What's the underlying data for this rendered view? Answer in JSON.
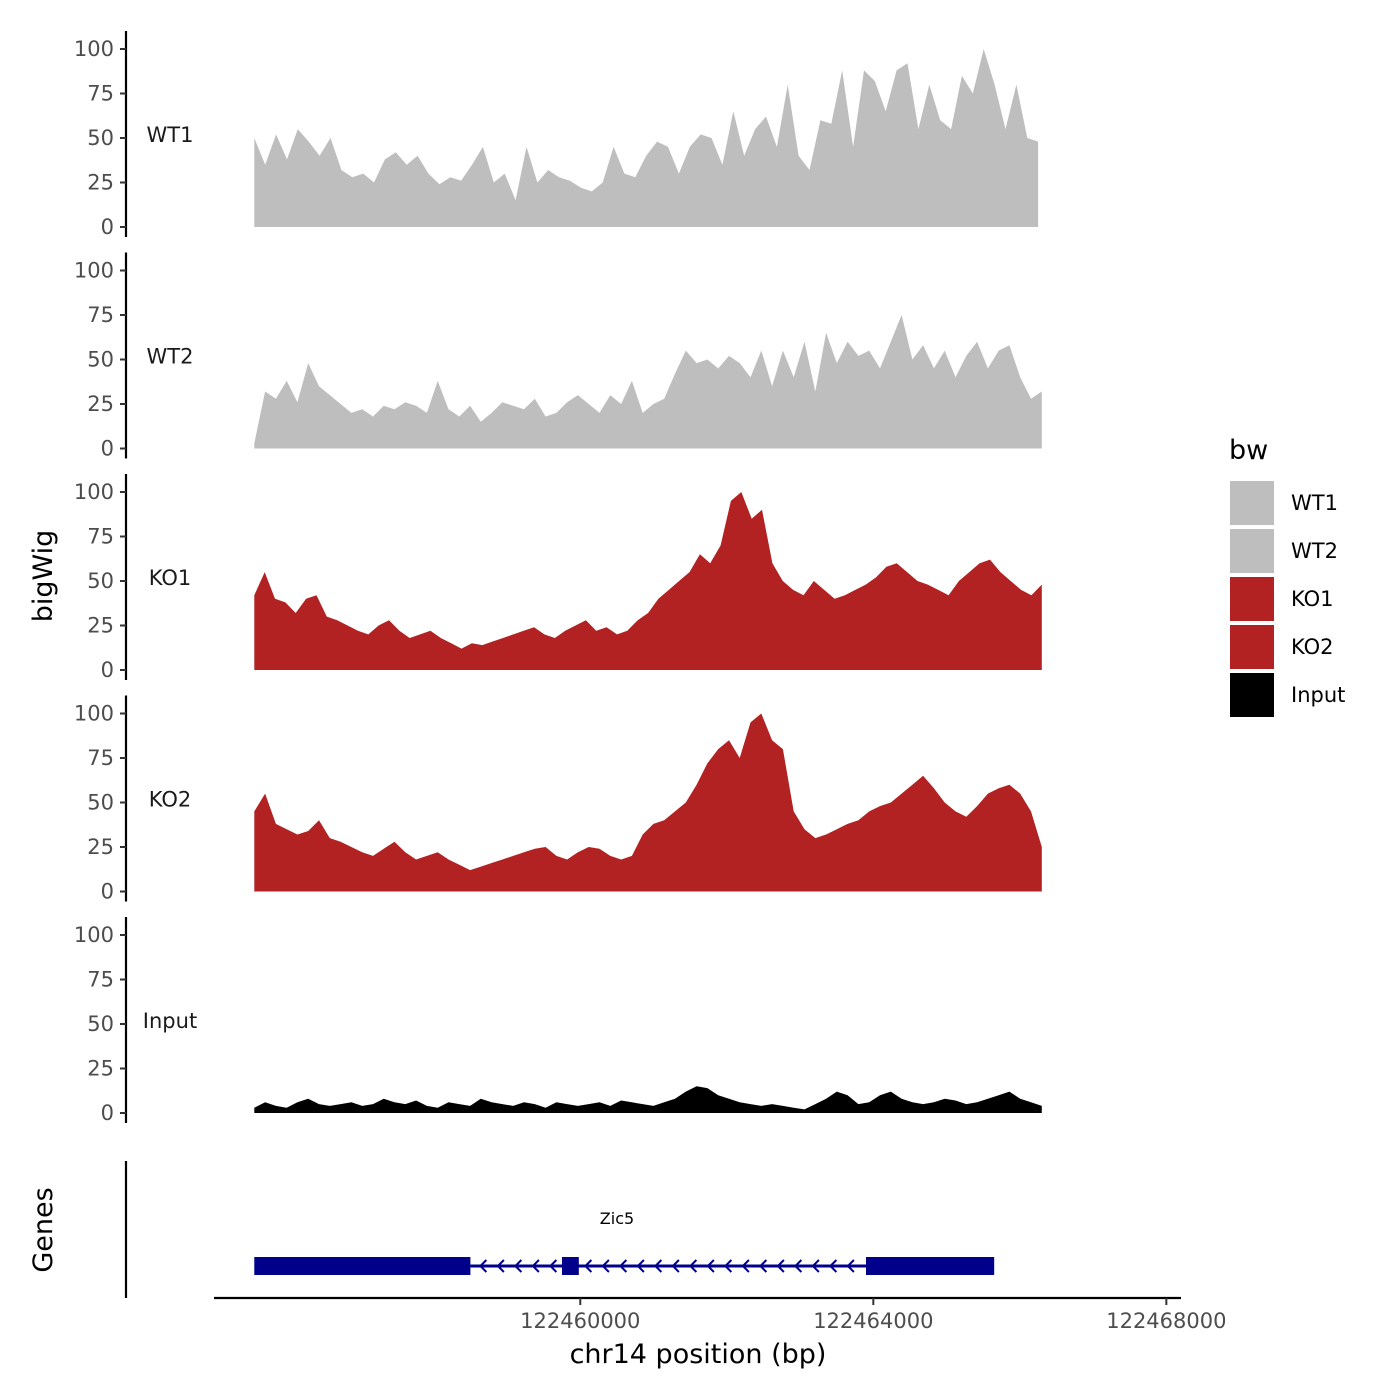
{
  "chart_data": {
    "type": "area",
    "x_axis_title": "chr14 position (bp)",
    "y_axis_title": "bigWig",
    "genes_axis_title": "Genes",
    "x_ticks": [
      122460000,
      122464000,
      122468000
    ],
    "x_tick_labels": [
      "122460000",
      "122464000",
      "122468000"
    ],
    "xlim": [
      122455000,
      122468200
    ],
    "y_ticks": [
      0,
      25,
      50,
      75,
      100
    ],
    "y_tick_labels": [
      "0",
      "25",
      "50",
      "75",
      "100"
    ],
    "ylim": [
      0,
      108
    ],
    "legend": {
      "title": "bw",
      "entries": [
        {
          "label": "WT1",
          "color": "#bebebe"
        },
        {
          "label": "WT2",
          "color": "#bebebe"
        },
        {
          "label": "KO1",
          "color": "#b22222"
        },
        {
          "label": "KO2",
          "color": "#b22222"
        },
        {
          "label": "Input",
          "color": "#000000"
        }
      ]
    },
    "tracks": [
      {
        "name": "WT1",
        "color": "#bebebe",
        "x_start": 122455550,
        "x_end": 122466250,
        "values": [
          50,
          35,
          52,
          38,
          55,
          48,
          40,
          50,
          32,
          28,
          30,
          25,
          38,
          42,
          35,
          40,
          30,
          24,
          28,
          26,
          35,
          45,
          25,
          30,
          15,
          45,
          25,
          32,
          28,
          26,
          22,
          20,
          25,
          45,
          30,
          28,
          40,
          48,
          45,
          30,
          45,
          52,
          50,
          35,
          65,
          40,
          55,
          62,
          45,
          80,
          40,
          32,
          60,
          58,
          88,
          45,
          88,
          82,
          65,
          88,
          92,
          55,
          80,
          60,
          55,
          85,
          75,
          100,
          80,
          55,
          80,
          50,
          48
        ]
      },
      {
        "name": "WT2",
        "color": "#bebebe",
        "x_start": 122455550,
        "x_end": 122466300,
        "values": [
          3,
          32,
          28,
          38,
          26,
          48,
          35,
          30,
          25,
          20,
          22,
          18,
          24,
          22,
          26,
          24,
          20,
          38,
          22,
          18,
          24,
          15,
          20,
          26,
          24,
          22,
          28,
          18,
          20,
          26,
          30,
          25,
          20,
          30,
          25,
          38,
          20,
          25,
          28,
          42,
          55,
          48,
          50,
          45,
          52,
          48,
          40,
          55,
          35,
          55,
          40,
          60,
          32,
          65,
          48,
          60,
          52,
          55,
          45,
          60,
          75,
          50,
          58,
          45,
          55,
          40,
          52,
          60,
          45,
          55,
          58,
          40,
          28,
          32
        ]
      },
      {
        "name": "KO1",
        "color": "#b22222",
        "x_start": 122455550,
        "x_end": 122466300,
        "values": [
          42,
          55,
          40,
          38,
          32,
          40,
          42,
          30,
          28,
          25,
          22,
          20,
          25,
          28,
          22,
          18,
          20,
          22,
          18,
          15,
          12,
          15,
          14,
          16,
          18,
          20,
          22,
          24,
          20,
          18,
          22,
          25,
          28,
          22,
          24,
          20,
          22,
          28,
          32,
          40,
          45,
          50,
          55,
          65,
          60,
          70,
          95,
          100,
          85,
          90,
          60,
          50,
          45,
          42,
          50,
          45,
          40,
          42,
          45,
          48,
          52,
          58,
          60,
          55,
          50,
          48,
          45,
          42,
          50,
          55,
          60,
          62,
          55,
          50,
          45,
          42,
          48
        ]
      },
      {
        "name": "KO2",
        "color": "#b22222",
        "x_start": 122455550,
        "x_end": 122466300,
        "values": [
          45,
          55,
          38,
          35,
          32,
          34,
          40,
          30,
          28,
          25,
          22,
          20,
          24,
          28,
          22,
          18,
          20,
          22,
          18,
          15,
          12,
          14,
          16,
          18,
          20,
          22,
          24,
          25,
          20,
          18,
          22,
          25,
          24,
          20,
          18,
          20,
          32,
          38,
          40,
          45,
          50,
          60,
          72,
          80,
          85,
          75,
          95,
          100,
          85,
          80,
          45,
          35,
          30,
          32,
          35,
          38,
          40,
          45,
          48,
          50,
          55,
          60,
          65,
          58,
          50,
          45,
          42,
          48,
          55,
          58,
          60,
          55,
          45,
          25
        ]
      },
      {
        "name": "Input",
        "color": "#000000",
        "x_start": 122455550,
        "x_end": 122466300,
        "values": [
          3,
          6,
          4,
          3,
          6,
          8,
          5,
          4,
          5,
          6,
          4,
          5,
          8,
          6,
          5,
          7,
          4,
          3,
          6,
          5,
          4,
          8,
          6,
          5,
          4,
          6,
          5,
          3,
          6,
          5,
          4,
          5,
          6,
          4,
          7,
          6,
          5,
          4,
          6,
          8,
          12,
          15,
          14,
          10,
          8,
          6,
          5,
          4,
          5,
          4,
          3,
          2,
          5,
          8,
          12,
          10,
          5,
          6,
          10,
          12,
          8,
          6,
          5,
          6,
          8,
          7,
          5,
          6,
          8,
          10,
          12,
          8,
          6,
          4
        ]
      }
    ],
    "gene": {
      "name": "Zic5",
      "strand": "-",
      "exons": [
        {
          "start": 122455550,
          "end": 122458500
        },
        {
          "start": 122459750,
          "end": 122459980
        },
        {
          "start": 122463900,
          "end": 122465650
        }
      ],
      "intron": {
        "start": 122458500,
        "end": 122463900
      },
      "color": "#00008b"
    }
  }
}
